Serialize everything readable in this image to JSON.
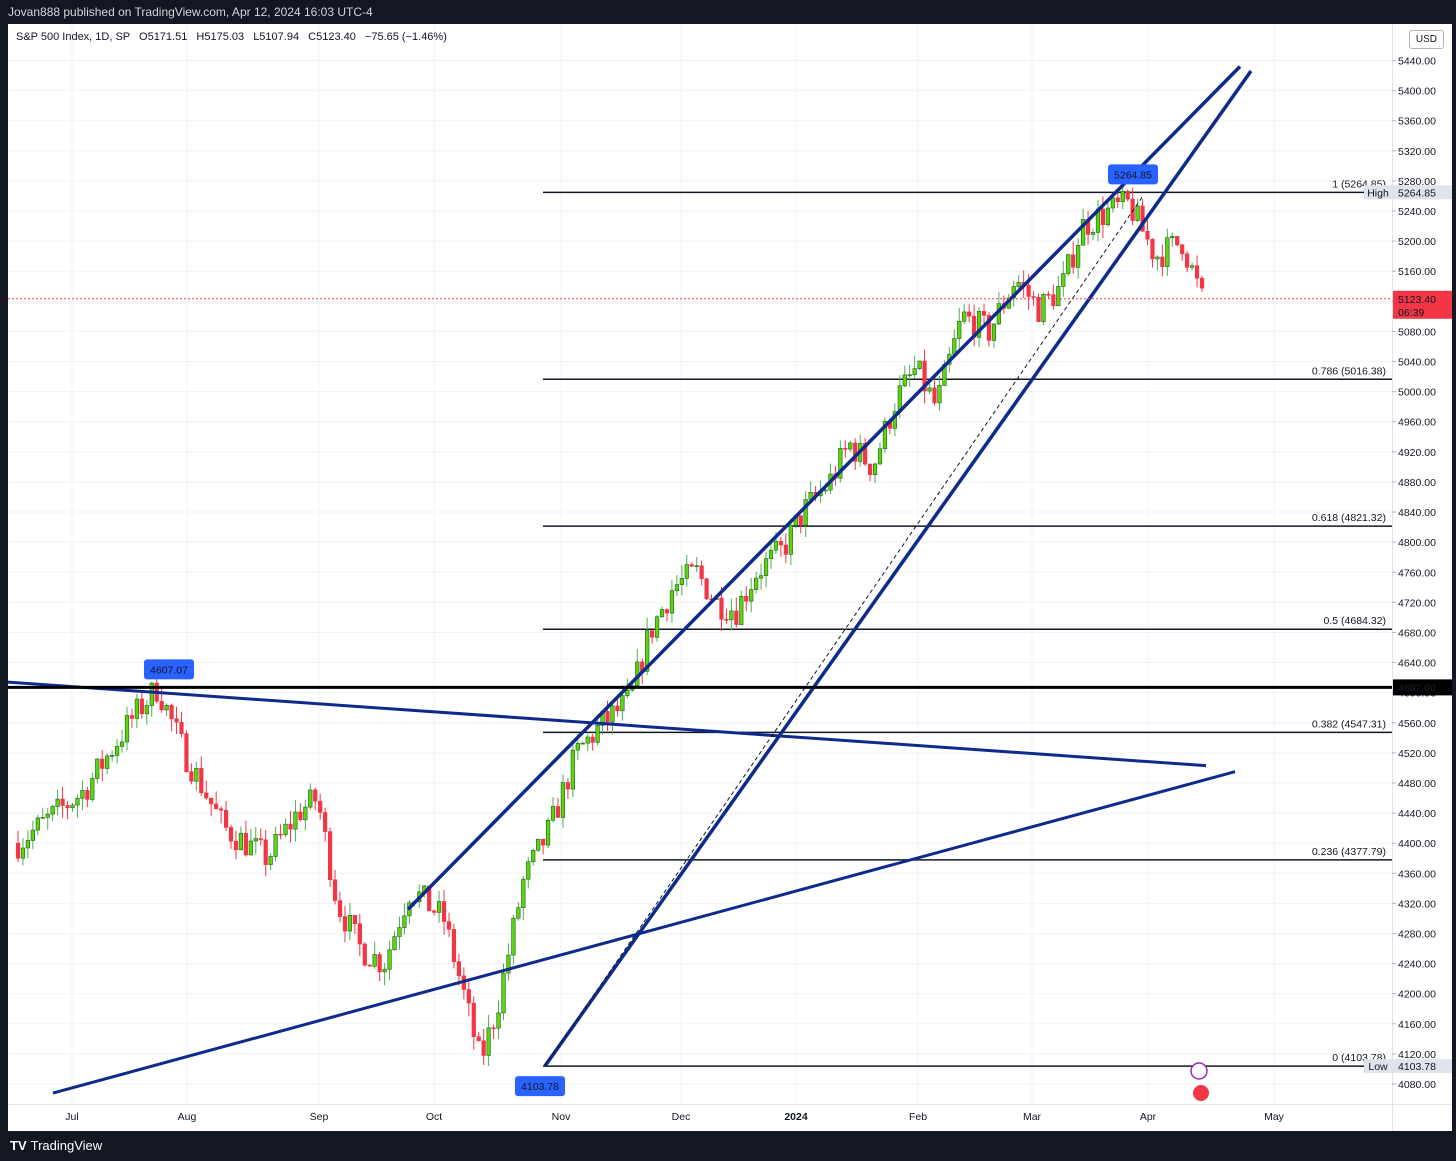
{
  "header": {
    "publisher": "Jovan888 published on TradingView.com, Apr 12, 2024 16:03 UTC-4"
  },
  "legend": {
    "symbol": "S&P 500 Index, 1D, SP",
    "open": "O5171.51",
    "high": "H5175.03",
    "low": "L5107.94",
    "close": "C5123.40",
    "change": "−75.65 (−1.46%)"
  },
  "price_scale": {
    "currency": "USD"
  },
  "footer": {
    "brand": "TradingView"
  },
  "colors": {
    "up": "#4caf50",
    "up_fill": "#5dd40c",
    "down": "#f23645",
    "trendline": "#0d2a8c",
    "fib": "#131722",
    "label_blue": "#2962ff",
    "last_price": "#f23645"
  },
  "chart_data": {
    "type": "candlestick",
    "y_ticks": [
      4080,
      4120,
      4160,
      4200,
      4240,
      4280,
      4320,
      4360,
      4400,
      4440,
      4480,
      4520,
      4560,
      4600,
      4640,
      4680,
      4720,
      4760,
      4800,
      4840,
      4880,
      4920,
      4960,
      5000,
      5040,
      5080,
      5120,
      5160,
      5200,
      5240,
      5280,
      5320,
      5360,
      5400,
      5440
    ],
    "x_ticks": [
      "Jul",
      "Aug",
      "Sep",
      "Oct",
      "Nov",
      "Dec",
      "2024",
      "Feb",
      "Mar",
      "Apr",
      "May"
    ],
    "fibonacci": [
      {
        "label": "1 (5264.85)",
        "value": 5264.85
      },
      {
        "label": "0.786 (5016.38)",
        "value": 5016.38
      },
      {
        "label": "0.618 (4821.32)",
        "value": 4821.32
      },
      {
        "label": "0.5 (4684.32)",
        "value": 4684.32
      },
      {
        "label": "0.382 (4547.31)",
        "value": 4547.31
      },
      {
        "label": "0.236 (4377.79)",
        "value": 4377.79
      },
      {
        "label": "0 (4103.78)",
        "value": 4103.78
      }
    ],
    "price_labels": [
      {
        "text": "High",
        "value": "5264.85"
      },
      {
        "text": "Low",
        "value": "4103.78"
      },
      {
        "text": "4607.00",
        "value": 4607.0
      },
      {
        "text": "5123.40",
        "sub": "06:39",
        "value": 5123.4
      }
    ],
    "callouts": [
      {
        "text": "5264.85",
        "value": 5264.85
      },
      {
        "text": "4607.07",
        "value": 4607.07
      },
      {
        "text": "4103.78",
        "value": 4103.78
      }
    ],
    "horizontal_level": 4607.0,
    "last_price": 5123.4
  }
}
